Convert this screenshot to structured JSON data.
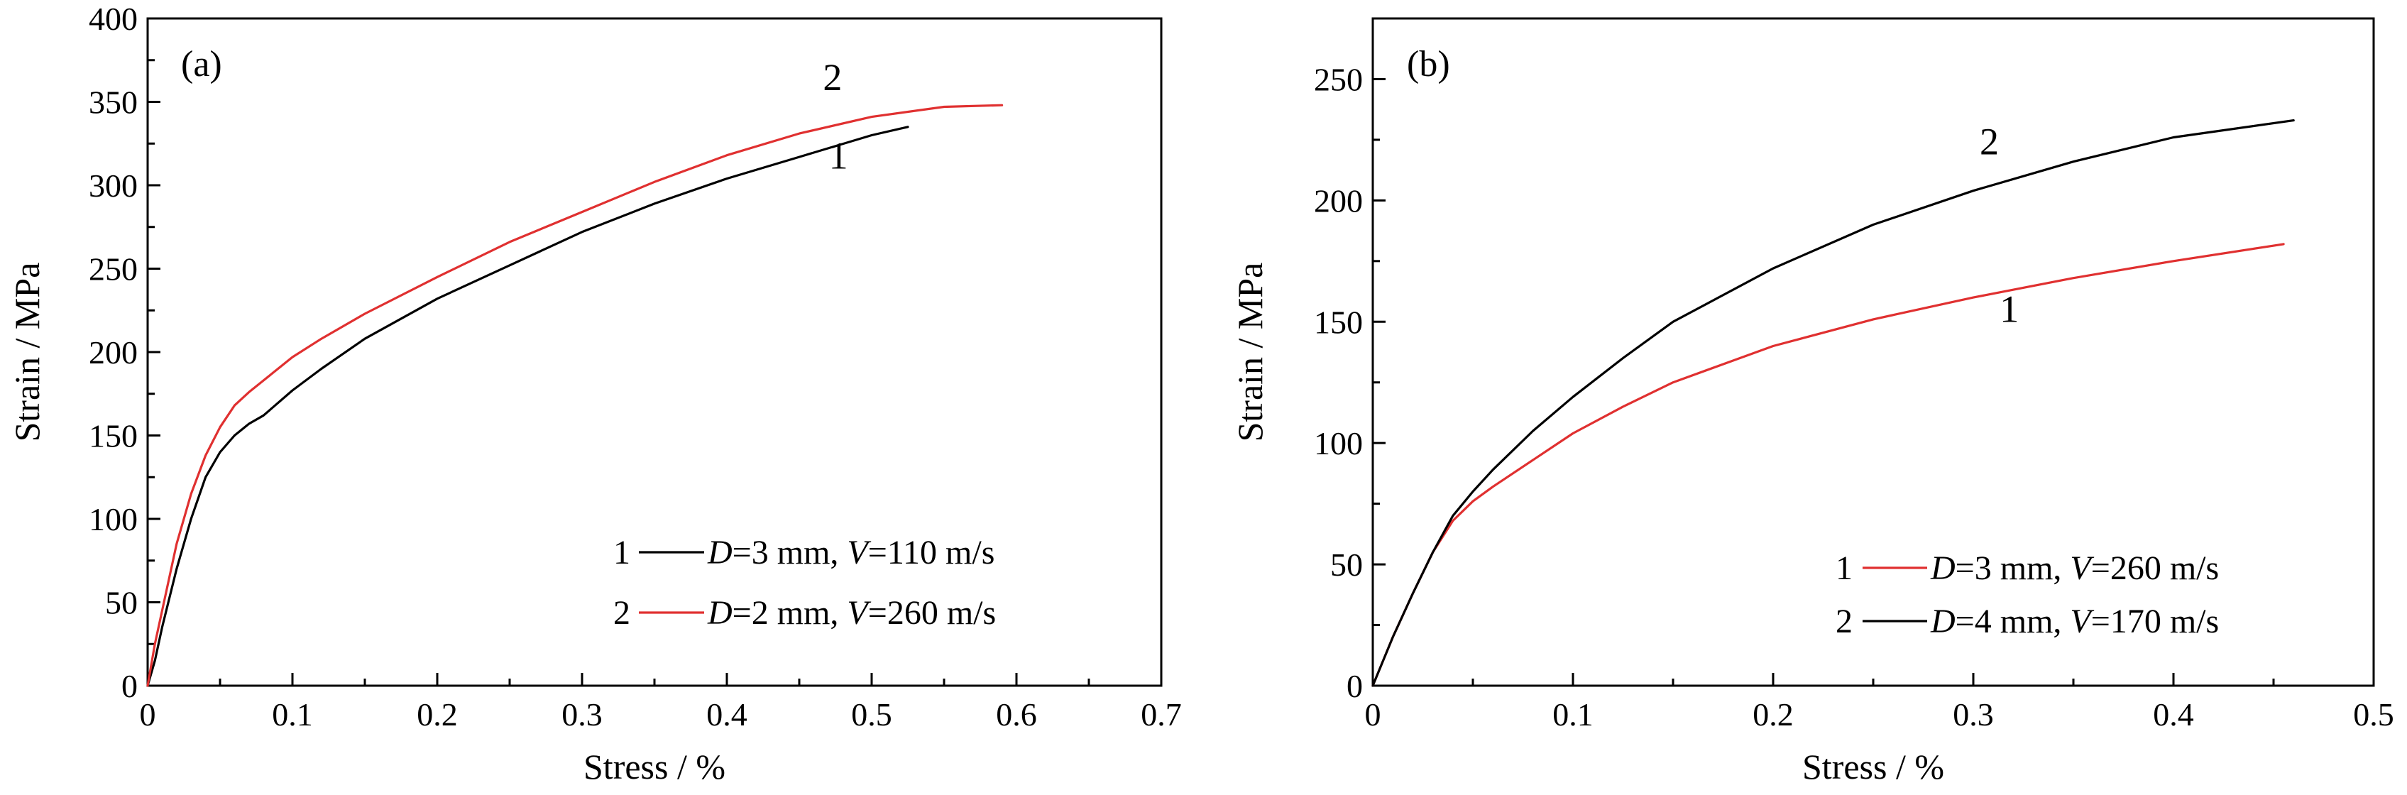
{
  "chart_data": [
    {
      "type": "line",
      "panel_label": "(a)",
      "xlabel": "Stress / %",
      "ylabel": "Strain / MPa",
      "xlim": [
        0,
        0.7
      ],
      "ylim": [
        0,
        400
      ],
      "xticks": [
        0,
        0.1,
        0.2,
        0.3,
        0.4,
        0.5,
        0.6,
        0.7
      ],
      "yticks": [
        0,
        50,
        100,
        150,
        200,
        250,
        300,
        350,
        400
      ],
      "xtick_labels": [
        "0",
        "0.1",
        "0.2",
        "0.3",
        "0.4",
        "0.5",
        "0.6",
        "0.7"
      ],
      "ytick_labels": [
        "0",
        "50",
        "100",
        "150",
        "200",
        "250",
        "300",
        "350",
        "400"
      ],
      "legend_position": "lower-right",
      "series": [
        {
          "id": "1",
          "curve_label": "1",
          "legend": {
            "num": "1",
            "d_italic": "D",
            "d_rest": "=3 mm, ",
            "v_italic": "V",
            "v_rest": "=110 m/s"
          },
          "color": "#000000",
          "x": [
            0,
            0.005,
            0.01,
            0.02,
            0.03,
            0.04,
            0.05,
            0.06,
            0.07,
            0.08,
            0.1,
            0.12,
            0.15,
            0.2,
            0.25,
            0.3,
            0.35,
            0.4,
            0.45,
            0.5,
            0.525
          ],
          "y": [
            0,
            15,
            35,
            70,
            100,
            125,
            140,
            150,
            157,
            162,
            177,
            190,
            208,
            232,
            252,
            272,
            289,
            304,
            317,
            330,
            335
          ]
        },
        {
          "id": "2",
          "curve_label": "2",
          "legend": {
            "num": "2",
            "d_italic": "D",
            "d_rest": "=2 mm, ",
            "v_italic": "V",
            "v_rest": "=260 m/s"
          },
          "color": "#e03030",
          "x": [
            0,
            0.005,
            0.01,
            0.02,
            0.03,
            0.04,
            0.05,
            0.06,
            0.07,
            0.08,
            0.1,
            0.12,
            0.15,
            0.2,
            0.25,
            0.3,
            0.35,
            0.4,
            0.45,
            0.5,
            0.55,
            0.59
          ],
          "y": [
            0,
            25,
            45,
            85,
            115,
            138,
            155,
            168,
            176,
            183,
            197,
            208,
            223,
            245,
            266,
            284,
            302,
            318,
            331,
            341,
            347,
            348
          ]
        }
      ]
    },
    {
      "type": "line",
      "panel_label": "(b)",
      "xlabel": "Stress / %",
      "ylabel": "Strain / MPa",
      "xlim": [
        0,
        0.5
      ],
      "ylim": [
        0,
        275
      ],
      "xticks": [
        0,
        0.1,
        0.2,
        0.3,
        0.4,
        0.5
      ],
      "yticks": [
        0,
        50,
        100,
        150,
        200,
        250
      ],
      "xtick_labels": [
        "0",
        "0.1",
        "0.2",
        "0.3",
        "0.4",
        "0.5"
      ],
      "ytick_labels": [
        "0",
        "50",
        "100",
        "150",
        "200",
        "250"
      ],
      "legend_position": "lower-right",
      "series": [
        {
          "id": "1",
          "curve_label": "1",
          "legend": {
            "num": "1",
            "d_italic": "D",
            "d_rest": "=3 mm, ",
            "v_italic": "V",
            "v_rest": "=260 m/s"
          },
          "color": "#e03030",
          "x": [
            0,
            0.005,
            0.01,
            0.02,
            0.03,
            0.04,
            0.05,
            0.06,
            0.08,
            0.1,
            0.125,
            0.15,
            0.2,
            0.25,
            0.3,
            0.35,
            0.4,
            0.455
          ],
          "y": [
            0,
            10,
            20,
            38,
            55,
            68,
            76,
            82,
            93,
            104,
            115,
            125,
            140,
            151,
            160,
            168,
            175,
            182
          ]
        },
        {
          "id": "2",
          "curve_label": "2",
          "legend": {
            "num": "2",
            "d_italic": "D",
            "d_rest": "=4 mm, ",
            "v_italic": "V",
            "v_rest": "=170 m/s"
          },
          "color": "#000000",
          "x": [
            0,
            0.005,
            0.01,
            0.02,
            0.03,
            0.04,
            0.05,
            0.06,
            0.08,
            0.1,
            0.125,
            0.15,
            0.2,
            0.25,
            0.3,
            0.35,
            0.4,
            0.46
          ],
          "y": [
            0,
            10,
            20,
            38,
            55,
            70,
            80,
            89,
            105,
            119,
            135,
            150,
            172,
            190,
            204,
            216,
            226,
            233
          ]
        }
      ]
    }
  ]
}
